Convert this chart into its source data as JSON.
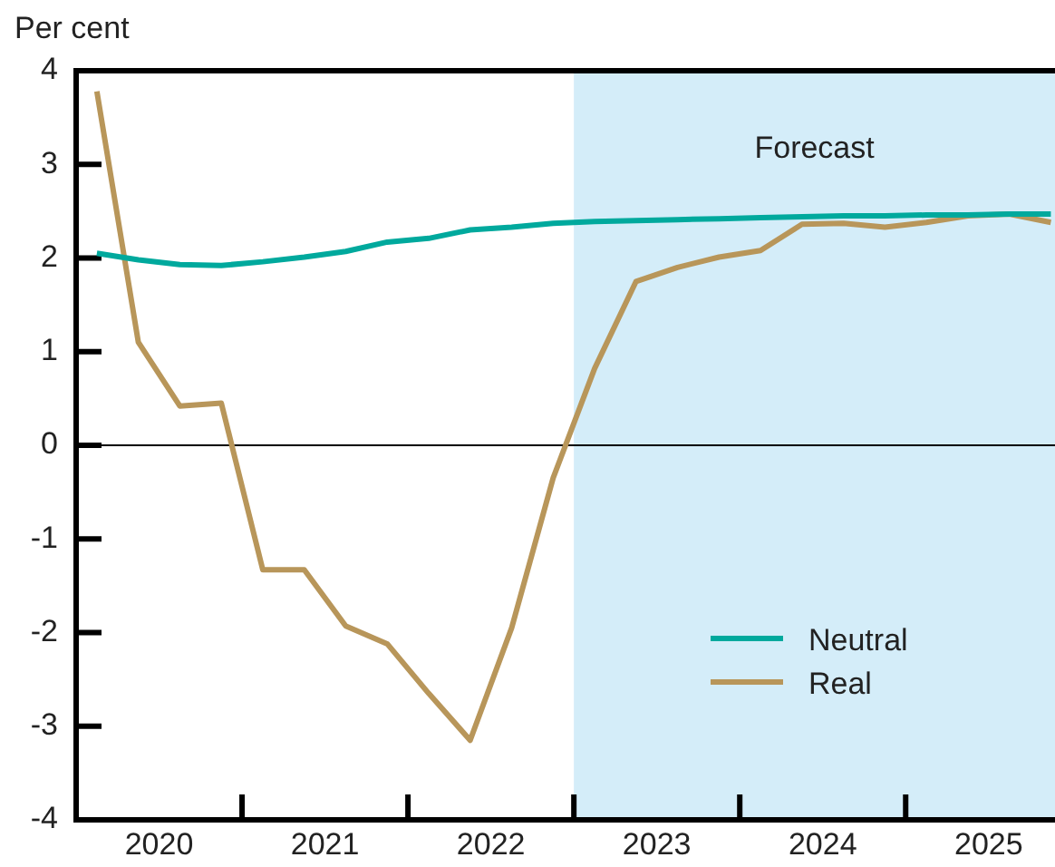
{
  "chart_data": {
    "type": "line",
    "ylabel": "Per cent",
    "x": [
      2020.125,
      2020.375,
      2020.625,
      2020.875,
      2021.125,
      2021.375,
      2021.625,
      2021.875,
      2022.125,
      2022.375,
      2022.625,
      2022.875,
      2023.125,
      2023.375,
      2023.625,
      2023.875,
      2024.125,
      2024.375,
      2024.625,
      2024.875,
      2025.125,
      2025.375,
      2025.625,
      2025.875
    ],
    "series": [
      {
        "name": "Neutral",
        "color": "#00a99d",
        "values": [
          2.05,
          1.98,
          1.93,
          1.92,
          1.96,
          2.01,
          2.07,
          2.17,
          2.21,
          2.3,
          2.33,
          2.37,
          2.39,
          2.4,
          2.41,
          2.42,
          2.43,
          2.44,
          2.45,
          2.45,
          2.46,
          2.46,
          2.47,
          2.47
        ]
      },
      {
        "name": "Real",
        "color": "#b8965a",
        "values": [
          3.78,
          1.1,
          0.42,
          0.45,
          -1.33,
          -1.33,
          -1.93,
          -2.12,
          -2.65,
          -3.15,
          -1.95,
          -0.35,
          0.82,
          1.75,
          1.9,
          2.01,
          2.08,
          2.36,
          2.37,
          2.33,
          2.38,
          2.45,
          2.47,
          2.38
        ]
      }
    ],
    "xlim": [
      2020,
      2025.9
    ],
    "xticks": [
      {
        "value": 2020.5,
        "label": "2020"
      },
      {
        "value": 2021,
        "label": null
      },
      {
        "value": 2021.5,
        "label": "2021"
      },
      {
        "value": 2022,
        "label": null
      },
      {
        "value": 2022.5,
        "label": "2022"
      },
      {
        "value": 2023,
        "label": null
      },
      {
        "value": 2023.5,
        "label": "2023"
      },
      {
        "value": 2024,
        "label": null
      },
      {
        "value": 2024.5,
        "label": "2024"
      },
      {
        "value": 2025,
        "label": null
      },
      {
        "value": 2025.5,
        "label": "2025"
      }
    ],
    "ylim": [
      -4,
      4
    ],
    "yticks": [
      -4,
      -3,
      -2,
      -1,
      0,
      1,
      2,
      3,
      4
    ],
    "ref_lines": [
      {
        "axis": "y",
        "value": 0,
        "color": "#000000"
      }
    ],
    "bands": [
      {
        "axis": "x",
        "from": 2023,
        "to": 2025.9,
        "label": "Forecast",
        "color": "#d4edf9"
      }
    ],
    "legend": "bottom right",
    "grid": false,
    "marker": "none",
    "line_style": "solid"
  }
}
